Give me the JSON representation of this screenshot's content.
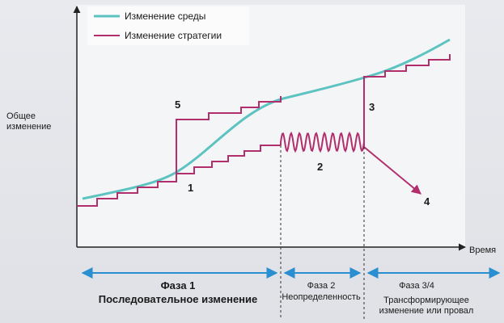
{
  "legend": [
    {
      "label": "Изменение среды",
      "color": "#5cc3c0"
    },
    {
      "label": "Изменение стратегии",
      "color": "#b02f6c"
    }
  ],
  "axes": {
    "y_label": "Общее изменение",
    "x_label": "Время"
  },
  "markers": [
    "1",
    "2",
    "3",
    "4",
    "5"
  ],
  "phases": [
    {
      "title": "Фаза 1",
      "subtitle": "Последовательное изменение"
    },
    {
      "title": "Фаза 2",
      "subtitle": "Неопределенность"
    },
    {
      "title": "Фаза 3/4",
      "subtitle": "Трансформирующее изменение или провал"
    }
  ]
}
